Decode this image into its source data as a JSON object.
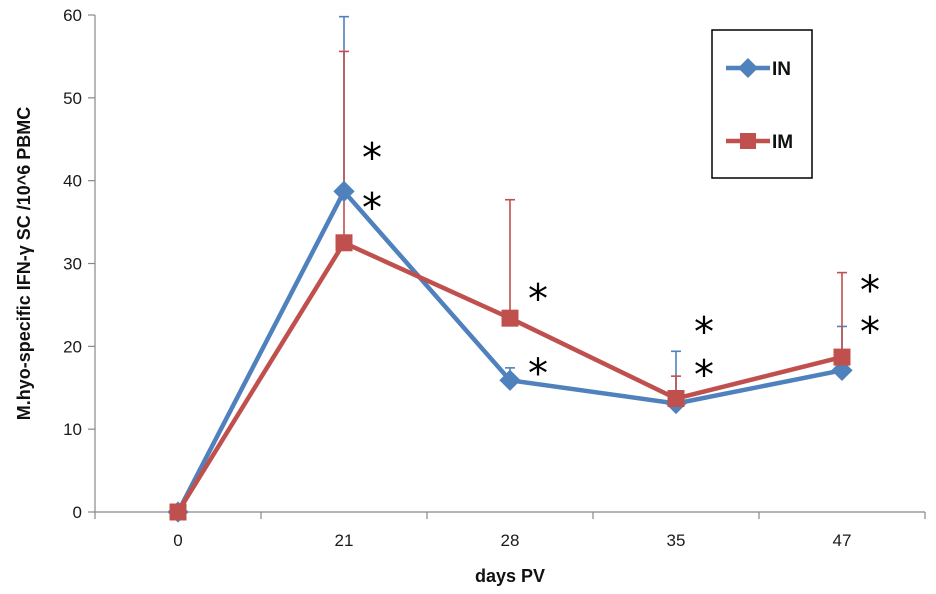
{
  "chart_data": {
    "type": "line",
    "title": "",
    "xlabel": "days PV",
    "ylabel": "M.hyo-specific IFN-γ SC /10^6 PBMC",
    "categories": [
      "0",
      "21",
      "28",
      "35",
      "47"
    ],
    "ylim": [
      0,
      60
    ],
    "yticks": [
      0,
      10,
      20,
      30,
      40,
      50,
      60
    ],
    "grid": false,
    "legend_position": "top-right",
    "series": [
      {
        "name": "IN",
        "color": "#4F81BD",
        "marker": "diamond",
        "values": [
          0,
          38.7,
          15.9,
          13.1,
          17.1
        ],
        "error_upper": [
          0,
          59.8,
          17.4,
          19.4,
          22.4
        ]
      },
      {
        "name": "IM",
        "color": "#C0504D",
        "marker": "square",
        "values": [
          0,
          32.5,
          23.4,
          13.7,
          18.7
        ],
        "error_upper": [
          0,
          55.6,
          37.7,
          16.4,
          28.9
        ]
      }
    ],
    "annotations": [
      {
        "text": "*",
        "category": "21",
        "y": 43.5,
        "series": "IN"
      },
      {
        "text": "*",
        "category": "21",
        "y": 37.5,
        "series": "IM"
      },
      {
        "text": "*",
        "category": "28",
        "y": 26.5,
        "series": "IM"
      },
      {
        "text": "*",
        "category": "28",
        "y": 17.5,
        "series": "IN"
      },
      {
        "text": "*",
        "category": "35",
        "y": 22.5,
        "series": "IM"
      },
      {
        "text": "*",
        "category": "35",
        "y": 17.3,
        "series": "IN"
      },
      {
        "text": "*",
        "category": "47",
        "y": 27.5,
        "series": "IM"
      },
      {
        "text": "*",
        "category": "47",
        "y": 22.5,
        "series": "IN"
      }
    ]
  }
}
